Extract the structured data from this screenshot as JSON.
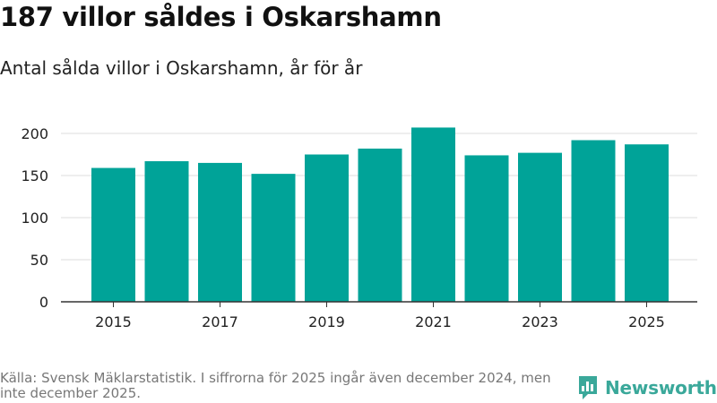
{
  "title": "187 villor såldes i Oskarshamn",
  "subtitle": "Antal sålda villor i Oskarshamn, år för år",
  "footer": "Källa: Svensk Mäklarstatistik. I siffrorna för 2025 ingår även december 2024, men inte december 2025.",
  "brand": {
    "name": "Newsworthy",
    "color": "#3aa89a",
    "icon": "bar-chart-logo-icon"
  },
  "colors": {
    "bar": "#00a398",
    "grid": "#dddddd",
    "axis": "#333333"
  },
  "chart_data": {
    "type": "bar",
    "title": "187 villor såldes i Oskarshamn",
    "subtitle": "Antal sålda villor i Oskarshamn, år för år",
    "categories": [
      "2015",
      "2016",
      "2017",
      "2018",
      "2019",
      "2020",
      "2021",
      "2022",
      "2023",
      "2024",
      "2025"
    ],
    "values": [
      159,
      167,
      165,
      152,
      175,
      182,
      207,
      174,
      177,
      192,
      187
    ],
    "x_tick_labels": [
      "2015",
      "2017",
      "2019",
      "2021",
      "2023",
      "2025"
    ],
    "y_ticks": [
      0,
      50,
      100,
      150,
      200
    ],
    "ylim": [
      0,
      200
    ],
    "xlabel": "",
    "ylabel": "",
    "grid": true
  }
}
